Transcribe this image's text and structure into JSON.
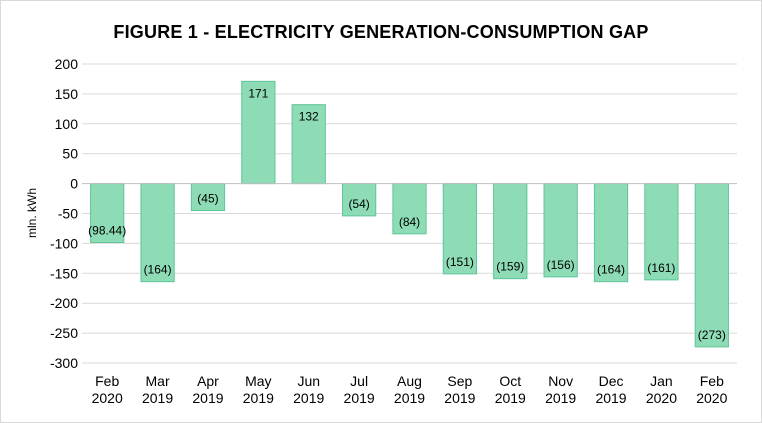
{
  "chart_data": {
    "type": "bar",
    "title": "FIGURE 1 - ELECTRICITY GENERATION-CONSUMPTION GAP",
    "ylabel": "mln. kWh",
    "xlabel": "",
    "ylim": [
      -300,
      200
    ],
    "yticks": [
      200,
      150,
      100,
      50,
      0,
      -50,
      -100,
      -150,
      -200,
      -250,
      -300
    ],
    "grid": true,
    "categories": [
      [
        "Feb",
        "2020"
      ],
      [
        "Mar",
        "2019"
      ],
      [
        "Apr",
        "2019"
      ],
      [
        "May",
        "2019"
      ],
      [
        "Jun",
        "2019"
      ],
      [
        "Jul",
        "2019"
      ],
      [
        "Aug",
        "2019"
      ],
      [
        "Sep",
        "2019"
      ],
      [
        "Oct",
        "2019"
      ],
      [
        "Nov",
        "2019"
      ],
      [
        "Dec",
        "2019"
      ],
      [
        "Jan",
        "2020"
      ],
      [
        "Feb",
        "2020"
      ]
    ],
    "values": [
      -98.44,
      -164,
      -45,
      171,
      132,
      -54,
      -84,
      -151,
      -159,
      -156,
      -164,
      -161,
      -273
    ],
    "data_labels": [
      "(98.44)",
      "(164)",
      "(45)",
      "171",
      "132",
      "(54)",
      "(84)",
      "(151)",
      "(159)",
      "(156)",
      "(164)",
      "(161)",
      "(273)"
    ],
    "colors": {
      "bar_fill": "#8ddcb6",
      "bar_stroke": "#5fc59a",
      "grid": "#d9d9d9",
      "axis": "#bfbfbf"
    }
  }
}
